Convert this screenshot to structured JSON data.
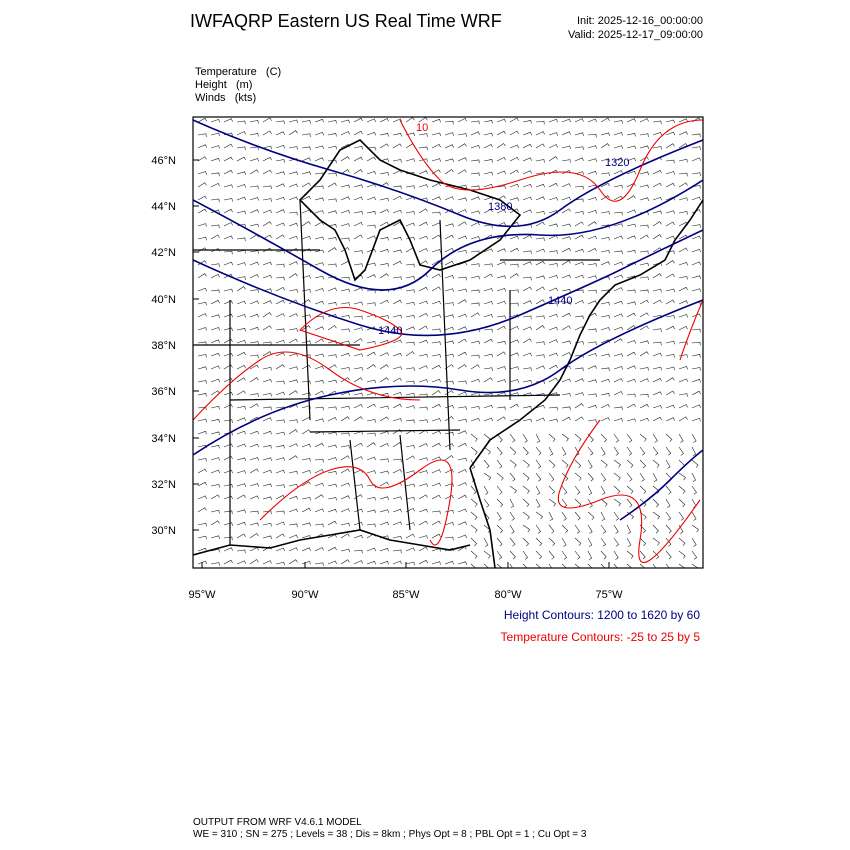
{
  "header": {
    "title": "IWFAQRP Eastern US Real Time WRF",
    "init": "Init: 2025-12-16_00:00:00",
    "valid": "Valid: 2025-12-17_09:00:00"
  },
  "fields": [
    "Temperature   (C)",
    "Height   (m)",
    "Winds   (kts)"
  ],
  "map": {
    "lat_labels": [
      "46°N",
      "44°N",
      "42°N",
      "40°N",
      "38°N",
      "36°N",
      "34°N",
      "32°N",
      "30°N"
    ],
    "lon_labels": [
      "95°W",
      "90°W",
      "85°W",
      "80°W",
      "75°W"
    ],
    "contour_labels": [
      "1320",
      "1380",
      "1440",
      "1440",
      "10"
    ]
  },
  "legend": {
    "height": "Height Contours: 1200 to 1620 by 60",
    "temperature": "Temperature Contours: -25 to 25 by 5"
  },
  "footer": {
    "line1": "OUTPUT FROM WRF V4.6.1 MODEL",
    "line2": "WE = 310 ; SN = 275 ; Levels = 38 ; Dis = 8km ; Phys Opt = 8 ; PBL Opt = 1 ; Cu Opt = 3"
  }
}
